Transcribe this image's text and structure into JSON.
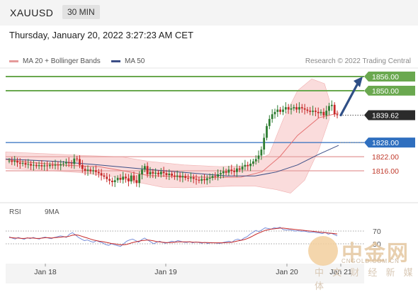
{
  "header": {
    "symbol": "XAUUSD",
    "timeframe": "30 MIN",
    "datetime": "Thursday, January 20, 2022 3:27:23 AM CET"
  },
  "legend": {
    "ma20": "MA 20 + Bollinger Bands",
    "ma50": "MA 50",
    "research": "Research © 2022 Trading Central",
    "rsi": "RSI",
    "rsi_ma": "9MA"
  },
  "colors": {
    "up": "#2e7d32",
    "down": "#c62828",
    "resistance": "#6aa84f",
    "support": "#e8a8a8",
    "pivot": "#2f6fbf",
    "ma20": "#e57373",
    "ma50": "#3c4e86",
    "arrow": "#2f4f86"
  },
  "watermark": {
    "brand": "中金网",
    "url": "CNGOLD.COM.CN",
    "tagline": "中 文 财 经 新 媒 体"
  },
  "chart_data": [
    {
      "type": "candlestick",
      "x_ticks": [
        "Jan 18",
        "Jan 19",
        "Jan 20",
        "Jan 21"
      ],
      "y_range": [
        1806,
        1860
      ],
      "levels": [
        {
          "name": "resistance-2",
          "value": 1856.0,
          "label": "1856.00"
        },
        {
          "name": "resistance-1",
          "value": 1850.0,
          "label": "1850.00"
        },
        {
          "name": "last-price",
          "value": 1839.62,
          "label": "1839.62"
        },
        {
          "name": "pivot",
          "value": 1828.0,
          "label": "1828.00"
        },
        {
          "name": "support-1",
          "value": 1822.0,
          "label": "1822.00"
        },
        {
          "name": "support-2",
          "value": 1816.0,
          "label": "1816.00"
        }
      ],
      "close": [
        1820.3,
        1819.8,
        1820.2,
        1819.5,
        1819.0,
        1819.3,
        1818.6,
        1818.9,
        1818.2,
        1818.5,
        1818.0,
        1818.4,
        1817.9,
        1818.3,
        1818.0,
        1818.5,
        1818.2,
        1818.6,
        1818.3,
        1818.8,
        1819.1,
        1819.6,
        1819.2,
        1818.9,
        1821.2,
        1821.0,
        1818.5,
        1816.8,
        1816.0,
        1816.5,
        1815.8,
        1816.2,
        1815.5,
        1815.0,
        1814.0,
        1813.5,
        1812.5,
        1811.8,
        1811.2,
        1812.0,
        1813.0,
        1812.2,
        1813.5,
        1812.8,
        1811.5,
        1814.0,
        1812.0,
        1810.8,
        1814.5,
        1816.5,
        1818.0,
        1814.5,
        1815.5,
        1814.8,
        1815.2,
        1814.5,
        1815.6,
        1815.0,
        1814.2,
        1814.8,
        1814.0,
        1813.5,
        1814.0,
        1813.2,
        1813.8,
        1813.0,
        1812.8,
        1813.2,
        1812.6,
        1812.2,
        1811.8,
        1812.5,
        1812.0,
        1812.8,
        1813.0,
        1813.8,
        1813.5,
        1814.5,
        1815.0,
        1815.8,
        1815.2,
        1816.5,
        1816.0,
        1815.5,
        1817.0,
        1816.5,
        1817.8,
        1818.5,
        1818.0,
        1819.0,
        1820.0,
        1821.0,
        1822.5,
        1825.0,
        1830.0,
        1835.0,
        1838.0,
        1840.0,
        1841.0,
        1842.0,
        1841.0,
        1842.0,
        1843.0,
        1842.0,
        1842.5,
        1843.0,
        1842.0,
        1843.0,
        1842.5,
        1842.0,
        1841.5,
        1841.0,
        1841.5,
        1841.0,
        1840.5,
        1841.0,
        1839.5,
        1841.5,
        1843.5,
        1844.0,
        1840.0,
        1839.6
      ],
      "ma20": [
        [
          8,
          1820.8
        ],
        [
          40,
          1819.6
        ],
        [
          90,
          1818.4
        ],
        [
          140,
          1817.7
        ],
        [
          170,
          1816.2
        ],
        [
          210,
          1814.0
        ],
        [
          250,
          1813.6
        ],
        [
          300,
          1813.2
        ],
        [
          340,
          1813.3
        ],
        [
          370,
          1815.6
        ],
        [
          395,
          1822.0
        ],
        [
          420,
          1831.0
        ],
        [
          450,
          1838.5
        ],
        [
          478,
          1840.5
        ]
      ],
      "ma50": [
        [
          8,
          1821.0
        ],
        [
          80,
          1820.0
        ],
        [
          140,
          1818.5
        ],
        [
          200,
          1816.8
        ],
        [
          260,
          1815.3
        ],
        [
          320,
          1813.8
        ],
        [
          360,
          1813.8
        ],
        [
          390,
          1815.5
        ],
        [
          420,
          1818.5
        ],
        [
          450,
          1823.0
        ],
        [
          478,
          1826.8
        ]
      ],
      "bb_upper": [
        [
          8,
          1824.0
        ],
        [
          60,
          1823.3
        ],
        [
          120,
          1822.5
        ],
        [
          170,
          1822.0
        ],
        [
          210,
          1820.0
        ],
        [
          260,
          1818.5
        ],
        [
          310,
          1817.8
        ],
        [
          350,
          1818.2
        ],
        [
          380,
          1823.0
        ],
        [
          400,
          1838.0
        ],
        [
          420,
          1850.0
        ],
        [
          440,
          1855.0
        ],
        [
          458,
          1853.0
        ],
        [
          465,
          1846.0
        ]
      ],
      "bb_lower": [
        [
          465,
          1838.0
        ],
        [
          450,
          1825.0
        ],
        [
          430,
          1812.0
        ],
        [
          410,
          1806.5
        ],
        [
          390,
          1808.0
        ],
        [
          360,
          1809.5
        ],
        [
          330,
          1809.5
        ],
        [
          300,
          1809.2
        ],
        [
          260,
          1808.8
        ],
        [
          230,
          1809.0
        ],
        [
          200,
          1810.8
        ],
        [
          160,
          1813.5
        ],
        [
          110,
          1815.3
        ],
        [
          60,
          1816.2
        ],
        [
          8,
          1817.0
        ]
      ],
      "forecast_arrow": {
        "from": 1839.6,
        "to": 1856.0
      }
    },
    {
      "type": "line",
      "title": "RSI",
      "y_ticks": [
        70,
        30
      ],
      "series": [
        {
          "name": "RSI",
          "values": [
            52,
            48,
            45,
            50,
            47,
            44,
            49,
            46,
            50,
            47,
            45,
            49,
            51,
            48,
            46,
            50,
            52,
            55,
            53,
            50,
            60,
            65,
            58,
            50,
            45,
            40,
            42,
            38,
            35,
            40,
            36,
            33,
            28,
            25,
            30,
            27,
            24,
            22,
            30,
            38,
            42,
            45,
            40,
            35,
            43,
            48,
            42,
            36,
            30,
            35,
            38,
            34,
            32,
            35,
            38,
            36,
            40,
            38,
            35,
            34,
            37,
            33,
            36,
            34,
            32,
            35,
            31,
            34,
            33,
            32,
            31,
            34,
            36,
            38,
            35,
            42,
            45,
            41,
            48,
            52,
            60,
            66,
            72,
            68,
            74,
            80,
            78,
            76,
            80,
            79,
            82,
            75,
            73,
            74,
            72,
            70,
            71,
            69,
            70,
            68,
            66,
            67,
            65,
            64,
            62,
            66,
            60,
            63,
            59,
            55
          ]
        },
        {
          "name": "9MA",
          "values": [
            50,
            49,
            48,
            48,
            47,
            47,
            48,
            48,
            48,
            47,
            47,
            48,
            49,
            49,
            48,
            49,
            50,
            51,
            52,
            52,
            54,
            57,
            58,
            57,
            54,
            51,
            48,
            45,
            42,
            40,
            38,
            37,
            35,
            33,
            31,
            30,
            28,
            27,
            27,
            28,
            31,
            34,
            36,
            38,
            40,
            41,
            42,
            41,
            39,
            37,
            36,
            35,
            34,
            34,
            34,
            35,
            36,
            36,
            36,
            36,
            36,
            35,
            35,
            35,
            34,
            34,
            34,
            33,
            33,
            33,
            33,
            33,
            34,
            34,
            35,
            37,
            39,
            41,
            43,
            46,
            50,
            55,
            60,
            64,
            68,
            72,
            74,
            76,
            77,
            78,
            79,
            79,
            78,
            77,
            76,
            75,
            74,
            73,
            72,
            71,
            70,
            69,
            68,
            67,
            66,
            65,
            64,
            63,
            62,
            61
          ]
        }
      ]
    }
  ]
}
